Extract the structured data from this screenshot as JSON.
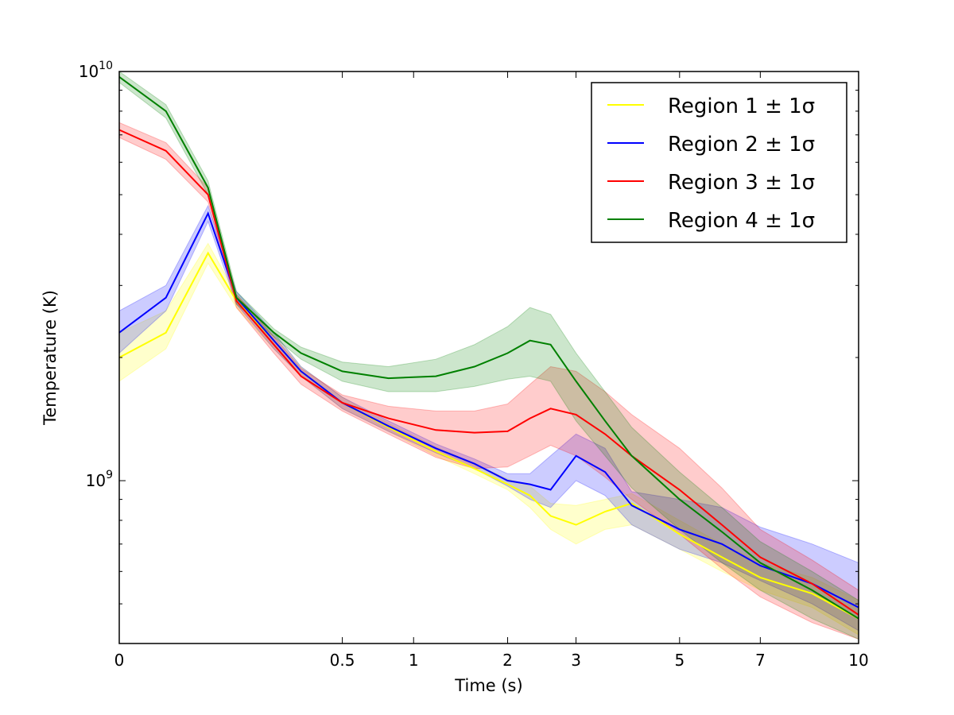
{
  "chart_data": {
    "type": "line",
    "title": "",
    "xlabel": "Time (s)",
    "ylabel": "Temperature (K)",
    "x_scale": "t^0.4 (compressed)",
    "y_scale": "log",
    "xlim": [
      0,
      10
    ],
    "ylim": [
      400000000.0,
      10000000000.0
    ],
    "x_ticks": [
      {
        "value": 0,
        "label": "0"
      },
      {
        "value": 0.5,
        "label": "0.5"
      },
      {
        "value": 1,
        "label": "1"
      },
      {
        "value": 2,
        "label": "2"
      },
      {
        "value": 3,
        "label": "3"
      },
      {
        "value": 5,
        "label": "5"
      },
      {
        "value": 7,
        "label": "7"
      },
      {
        "value": 10,
        "label": "10"
      }
    ],
    "y_ticks": [
      {
        "value": 1000000000.0,
        "base": "10",
        "exp": "9"
      },
      {
        "value": 10000000000.0,
        "base": "10",
        "exp": "10"
      }
    ],
    "legend": {
      "placement": "top-right"
    },
    "x": [
      0,
      0.01,
      0.05,
      0.1,
      0.2,
      0.3,
      0.5,
      0.8,
      1.2,
      1.6,
      2.0,
      2.3,
      2.6,
      3.0,
      3.5,
      4.0,
      5.0,
      6.0,
      7.0,
      8.5,
      10.0
    ],
    "series": [
      {
        "name": "Region 1 ± 1σ",
        "color": "#ffff00",
        "values": [
          2000000000.0,
          2300000000.0,
          3600000000.0,
          2750000000.0,
          2200000000.0,
          1850000000.0,
          1550000000.0,
          1350000000.0,
          1180000000.0,
          1070000000.0,
          980000000.0,
          920000000.0,
          820000000.0,
          780000000.0,
          840000000.0,
          880000000.0,
          740000000.0,
          650000000.0,
          580000000.0,
          530000000.0,
          460000000.0
        ],
        "lower": [
          1750000000.0,
          2100000000.0,
          3400000000.0,
          2650000000.0,
          2100000000.0,
          1800000000.0,
          1500000000.0,
          1320000000.0,
          1150000000.0,
          1040000000.0,
          950000000.0,
          860000000.0,
          760000000.0,
          700000000.0,
          760000000.0,
          780000000.0,
          680000000.0,
          600000000.0,
          540000000.0,
          490000000.0,
          420000000.0
        ],
        "upper": [
          2300000000.0,
          2600000000.0,
          3800000000.0,
          2850000000.0,
          2300000000.0,
          1900000000.0,
          1600000000.0,
          1380000000.0,
          1210000000.0,
          1100000000.0,
          1010000000.0,
          970000000.0,
          880000000.0,
          870000000.0,
          900000000.0,
          930000000.0,
          800000000.0,
          700000000.0,
          630000000.0,
          580000000.0,
          510000000.0
        ]
      },
      {
        "name": "Region 2 ± 1σ",
        "color": "#0000ff",
        "values": [
          2300000000.0,
          2800000000.0,
          4500000000.0,
          2800000000.0,
          2200000000.0,
          1850000000.0,
          1550000000.0,
          1360000000.0,
          1200000000.0,
          1100000000.0,
          1000000000.0,
          980000000.0,
          950000000.0,
          1150000000.0,
          1050000000.0,
          870000000.0,
          760000000.0,
          700000000.0,
          620000000.0,
          560000000.0,
          490000000.0
        ],
        "lower": [
          2050000000.0,
          2600000000.0,
          4300000000.0,
          2700000000.0,
          2100000000.0,
          1800000000.0,
          1500000000.0,
          1320000000.0,
          1170000000.0,
          1070000000.0,
          970000000.0,
          900000000.0,
          860000000.0,
          1000000000.0,
          920000000.0,
          780000000.0,
          680000000.0,
          630000000.0,
          570000000.0,
          500000000.0,
          430000000.0
        ],
        "upper": [
          2600000000.0,
          3000000000.0,
          4700000000.0,
          2900000000.0,
          2300000000.0,
          1900000000.0,
          1600000000.0,
          1400000000.0,
          1230000000.0,
          1130000000.0,
          1040000000.0,
          1040000000.0,
          1150000000.0,
          1300000000.0,
          1200000000.0,
          940000000.0,
          900000000.0,
          860000000.0,
          770000000.0,
          700000000.0,
          630000000.0
        ]
      },
      {
        "name": "Region 3 ± 1σ",
        "color": "#ff0000",
        "values": [
          7200000000.0,
          6400000000.0,
          5000000000.0,
          2750000000.0,
          2150000000.0,
          1800000000.0,
          1550000000.0,
          1420000000.0,
          1330000000.0,
          1310000000.0,
          1320000000.0,
          1420000000.0,
          1500000000.0,
          1450000000.0,
          1300000000.0,
          1150000000.0,
          950000000.0,
          780000000.0,
          650000000.0,
          560000000.0,
          470000000.0
        ],
        "lower": [
          6900000000.0,
          6100000000.0,
          4800000000.0,
          2650000000.0,
          2050000000.0,
          1720000000.0,
          1480000000.0,
          1300000000.0,
          1140000000.0,
          1070000000.0,
          1080000000.0,
          1150000000.0,
          1220000000.0,
          1150000000.0,
          1020000000.0,
          900000000.0,
          740000000.0,
          610000000.0,
          520000000.0,
          450000000.0,
          410000000.0
        ],
        "upper": [
          7500000000.0,
          6700000000.0,
          5200000000.0,
          2850000000.0,
          2250000000.0,
          1880000000.0,
          1620000000.0,
          1520000000.0,
          1480000000.0,
          1480000000.0,
          1540000000.0,
          1720000000.0,
          1900000000.0,
          1850000000.0,
          1650000000.0,
          1450000000.0,
          1200000000.0,
          960000000.0,
          760000000.0,
          640000000.0,
          540000000.0
        ]
      },
      {
        "name": "Region 4 ± 1σ",
        "color": "#008000",
        "values": [
          9700000000.0,
          8000000000.0,
          5200000000.0,
          2800000000.0,
          2300000000.0,
          2050000000.0,
          1850000000.0,
          1780000000.0,
          1800000000.0,
          1900000000.0,
          2050000000.0,
          2200000000.0,
          2150000000.0,
          1750000000.0,
          1400000000.0,
          1150000000.0,
          900000000.0,
          750000000.0,
          630000000.0,
          540000000.0,
          460000000.0
        ],
        "lower": [
          9400000000.0,
          7700000000.0,
          5000000000.0,
          2700000000.0,
          2250000000.0,
          1980000000.0,
          1750000000.0,
          1650000000.0,
          1650000000.0,
          1700000000.0,
          1770000000.0,
          1800000000.0,
          1750000000.0,
          1400000000.0,
          1150000000.0,
          960000000.0,
          760000000.0,
          630000000.0,
          540000000.0,
          460000000.0,
          410000000.0
        ],
        "upper": [
          10000000000.0,
          8300000000.0,
          5400000000.0,
          2900000000.0,
          2350000000.0,
          2120000000.0,
          1950000000.0,
          1900000000.0,
          1980000000.0,
          2150000000.0,
          2380000000.0,
          2650000000.0,
          2550000000.0,
          2050000000.0,
          1650000000.0,
          1350000000.0,
          1050000000.0,
          860000000.0,
          710000000.0,
          600000000.0,
          510000000.0
        ]
      }
    ]
  }
}
